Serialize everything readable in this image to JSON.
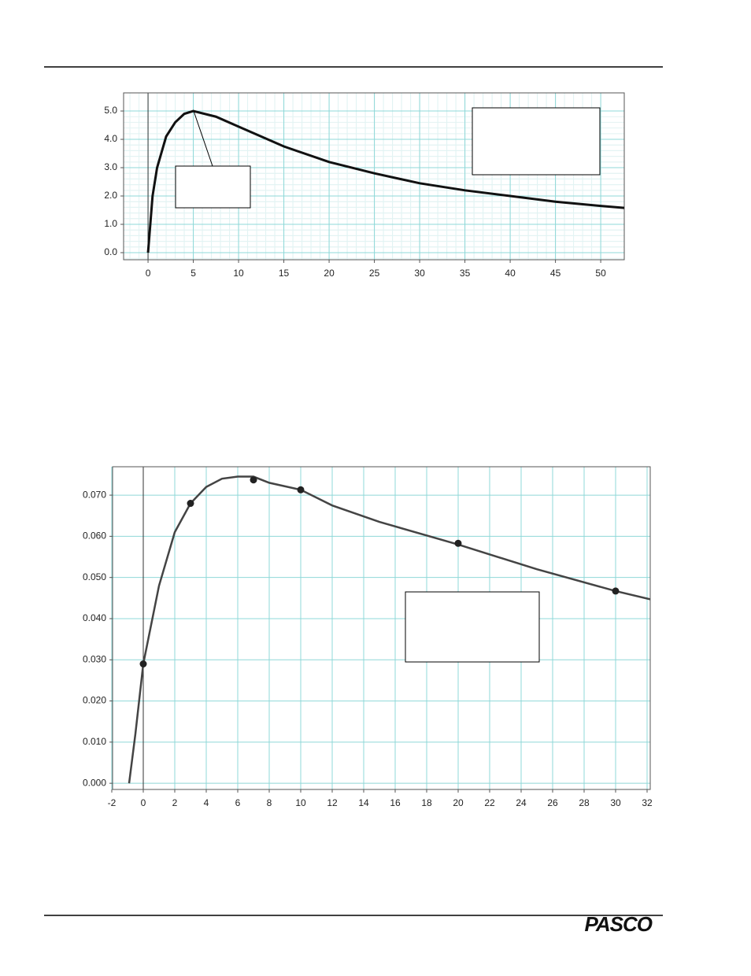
{
  "chart_data": [
    {
      "type": "line",
      "x": [
        0,
        0.5,
        1,
        2,
        3,
        4,
        5,
        7.5,
        10,
        15,
        20,
        25,
        30,
        35,
        40,
        45,
        50,
        52.6
      ],
      "values": [
        0,
        2.0,
        3.0,
        4.1,
        4.6,
        4.9,
        5.0,
        4.8,
        4.45,
        3.75,
        3.2,
        2.8,
        2.45,
        2.2,
        2.0,
        1.8,
        1.65,
        1.58
      ],
      "color": "#111111",
      "xlim": [
        -2.7,
        52.6
      ],
      "xticks": [
        0,
        5,
        10,
        15,
        20,
        25,
        30,
        35,
        40,
        45,
        50
      ],
      "ylim": [
        -0.25,
        5.64
      ],
      "yticks": [
        {
          "value": 0,
          "label": "0.0"
        },
        {
          "value": 1,
          "label": "1.0"
        },
        {
          "value": 2,
          "label": "2.0"
        },
        {
          "value": 3,
          "label": "3.0"
        },
        {
          "value": 4,
          "label": "4.0"
        },
        {
          "value": 5,
          "label": "5.0"
        }
      ],
      "grid": true,
      "minor_grid": true,
      "grid_color": "#8fd8d8"
    },
    {
      "type": "scatter",
      "x": [
        0,
        3,
        7,
        10,
        20,
        30
      ],
      "values": [
        0.029,
        0.068,
        0.0737,
        0.0713,
        0.0583,
        0.0467
      ],
      "color": "#222222",
      "fit_x": [
        -0.9,
        -0.5,
        0,
        1,
        2,
        3,
        4,
        5,
        6,
        7,
        8,
        10,
        12,
        15,
        20,
        25,
        30,
        32.2
      ],
      "fit_values": [
        0,
        0.012,
        0.029,
        0.048,
        0.061,
        0.068,
        0.072,
        0.074,
        0.0745,
        0.0745,
        0.073,
        0.0713,
        0.0675,
        0.0635,
        0.058,
        0.052,
        0.0467,
        0.0447
      ],
      "fit_color": "#444444",
      "xlim": [
        -1.95,
        32.2
      ],
      "xticks": [
        -2,
        0,
        2,
        4,
        6,
        8,
        10,
        12,
        14,
        16,
        18,
        20,
        22,
        24,
        26,
        28,
        30,
        32
      ],
      "ylim": [
        -0.0015,
        0.0769
      ],
      "yticks": [
        {
          "value": 0,
          "label": "0.000"
        },
        {
          "value": 0.01,
          "label": "0.010"
        },
        {
          "value": 0.02,
          "label": "0.020"
        },
        {
          "value": 0.03,
          "label": "0.030"
        },
        {
          "value": 0.04,
          "label": "0.040"
        },
        {
          "value": 0.05,
          "label": "0.050"
        },
        {
          "value": 0.06,
          "label": "0.060"
        },
        {
          "value": 0.07,
          "label": "0.070"
        }
      ],
      "grid": true,
      "minor_grid": false,
      "grid_color": "#8fd8d8"
    }
  ],
  "footer": {
    "logo": "PASCO"
  }
}
